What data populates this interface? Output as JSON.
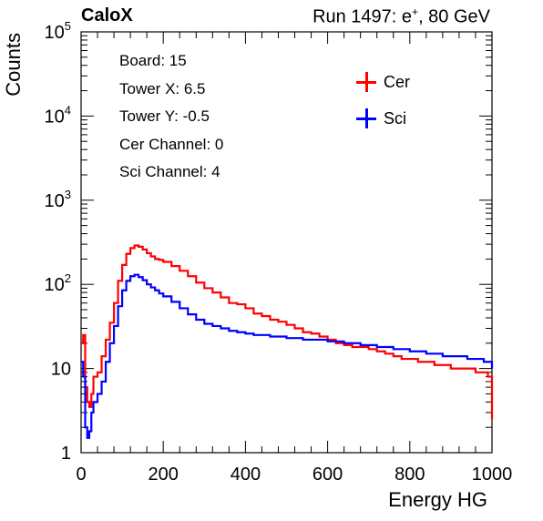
{
  "header": {
    "left_title": "CaloX",
    "right_title_pre": "Run 1497: e",
    "right_title_sup": "+",
    "right_title_post": ", 80 GeV"
  },
  "info_box": {
    "lines": [
      "Board: 15",
      "Tower X: 6.5",
      "Tower Y: -0.5",
      "Cer Channel: 0",
      "Sci Channel: 4"
    ]
  },
  "legend": {
    "cer_label": "Cer",
    "sci_label": "Sci"
  },
  "colors": {
    "cer": "#ff0000",
    "sci": "#0000ff",
    "axis": "#000000"
  },
  "chart_data": {
    "type": "line",
    "title": "",
    "xlabel": "Energy HG",
    "ylabel": "Counts",
    "xlim": [
      0,
      1000
    ],
    "ylim": [
      1,
      100000
    ],
    "yscale": "log",
    "grid": false,
    "legend_position": "top-right",
    "x_ticks": [
      0,
      200,
      400,
      600,
      800,
      1000
    ],
    "x_tick_labels": [
      "0",
      "200",
      "400",
      "600",
      "800",
      "1000"
    ],
    "y_ticks": [
      1,
      10,
      100,
      1000,
      10000,
      100000
    ],
    "y_tick_labels": [
      {
        "base": "1",
        "exp": ""
      },
      {
        "base": "10",
        "exp": ""
      },
      {
        "base": "10",
        "exp": "2"
      },
      {
        "base": "10",
        "exp": "3"
      },
      {
        "base": "10",
        "exp": "4"
      },
      {
        "base": "10",
        "exp": "5"
      }
    ],
    "series": [
      {
        "name": "Cer",
        "color": "#ff0000",
        "x": [
          0,
          5,
          10,
          15,
          20,
          25,
          30,
          40,
          50,
          60,
          70,
          80,
          90,
          100,
          110,
          120,
          130,
          140,
          150,
          160,
          170,
          180,
          190,
          200,
          220,
          240,
          260,
          280,
          300,
          320,
          340,
          360,
          380,
          400,
          420,
          440,
          460,
          480,
          500,
          520,
          540,
          560,
          580,
          600,
          620,
          640,
          660,
          680,
          700,
          720,
          740,
          760,
          780,
          800,
          820,
          840,
          860,
          880,
          900,
          920,
          940,
          960,
          980,
          990,
          1000
        ],
        "y": [
          20,
          25,
          6,
          4,
          3.5,
          5,
          8,
          9,
          14,
          22,
          35,
          60,
          110,
          170,
          230,
          270,
          290,
          280,
          260,
          235,
          215,
          200,
          195,
          185,
          165,
          145,
          125,
          105,
          90,
          80,
          70,
          60,
          58,
          52,
          45,
          42,
          38,
          36,
          33,
          30,
          27,
          26,
          24,
          22,
          20,
          19,
          18,
          18,
          17,
          16,
          15,
          14,
          13,
          13,
          12,
          12,
          11,
          11,
          10,
          10,
          10,
          9,
          9,
          8,
          2.5
        ]
      },
      {
        "name": "Sci",
        "color": "#0000ff",
        "x": [
          0,
          5,
          10,
          15,
          20,
          25,
          30,
          40,
          50,
          60,
          70,
          80,
          90,
          100,
          110,
          120,
          130,
          140,
          150,
          160,
          170,
          180,
          190,
          200,
          220,
          240,
          260,
          280,
          300,
          320,
          340,
          360,
          380,
          400,
          420,
          440,
          460,
          480,
          500,
          520,
          540,
          560,
          580,
          600,
          620,
          640,
          660,
          680,
          700,
          720,
          740,
          760,
          780,
          800,
          820,
          840,
          860,
          880,
          900,
          920,
          940,
          960,
          980,
          990,
          1000
        ],
        "y": [
          12,
          8,
          2,
          1.5,
          1.8,
          3,
          4,
          5,
          7,
          12,
          20,
          32,
          55,
          85,
          110,
          125,
          130,
          122,
          112,
          100,
          92,
          85,
          78,
          72,
          62,
          52,
          44,
          38,
          34,
          32,
          30,
          28,
          27,
          26,
          25,
          25,
          24,
          24,
          23,
          23,
          22,
          22,
          22,
          21,
          21,
          20,
          20,
          19,
          19,
          18,
          18,
          17,
          17,
          16,
          16,
          15,
          15,
          14,
          14,
          14,
          13,
          13,
          12,
          12,
          10
        ]
      }
    ]
  }
}
